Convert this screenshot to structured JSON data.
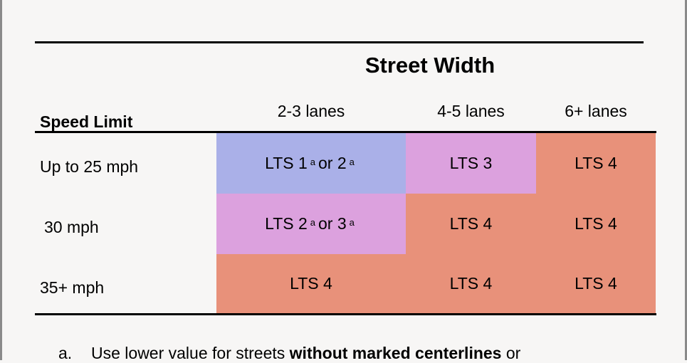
{
  "header": {
    "street_width_title": "Street Width",
    "speed_limit_label": "Speed Limit",
    "columns": [
      "2-3 lanes",
      "4-5 lanes",
      "6+ lanes"
    ]
  },
  "rows": [
    {
      "label": "Up to 25 mph",
      "cells": [
        {
          "main": "LTS 1",
          "sup1": "a",
          "mid": "or 2",
          "sup2": "a"
        },
        {
          "main": "LTS 3"
        },
        {
          "main": "LTS 4"
        }
      ]
    },
    {
      "label": "30 mph",
      "cells": [
        {
          "main": "LTS 2",
          "sup1": "a",
          "mid": "or 3",
          "sup2": "a"
        },
        {
          "main": "LTS 4"
        },
        {
          "main": "LTS 4"
        }
      ]
    },
    {
      "label": "35+ mph",
      "cells": [
        {
          "main": "LTS 4"
        },
        {
          "main": "LTS 4"
        },
        {
          "main": "LTS 4"
        }
      ]
    }
  ],
  "colors": {
    "lts_low": "#aab0e8",
    "lts_mid": "#dca1de",
    "lts_high": "#e8917a"
  },
  "footnote": {
    "marker": "a.",
    "text_before": "Use lower value for streets ",
    "text_bold": "without marked centerlines",
    "text_after": " or"
  }
}
